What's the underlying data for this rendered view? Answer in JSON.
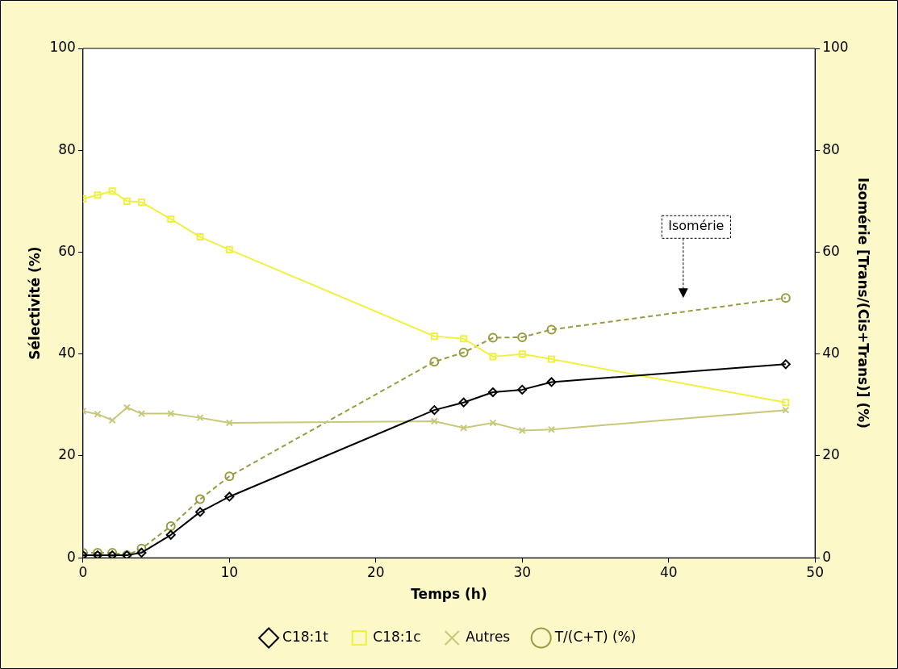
{
  "chart_data": {
    "type": "line",
    "xlabel": "Temps (h)",
    "ylabel": "Sélectivité (%)",
    "y2label": "Isomérie [Trans/(Cis+Trans)] (%)",
    "x": [
      0,
      1,
      2,
      3,
      4,
      6,
      8,
      10,
      24,
      26,
      28,
      30,
      32,
      48
    ],
    "xlim": [
      0,
      50
    ],
    "xticks": [
      0,
      10,
      20,
      30,
      40,
      50
    ],
    "ylim": [
      0,
      100
    ],
    "yticks": [
      0,
      20,
      40,
      60,
      80,
      100
    ],
    "y2lim": [
      0,
      100
    ],
    "y2ticks": [
      0,
      20,
      40,
      60,
      80,
      100
    ],
    "grid": false,
    "legend": "bottom",
    "annotations": [
      "Isomérie"
    ],
    "series": [
      {
        "name": "C18:1t",
        "color": "#000000",
        "marker": "diamond",
        "line_style": "solid",
        "values": [
          0.5,
          0.5,
          0.5,
          0.5,
          1,
          4.5,
          9,
          12,
          29,
          30.5,
          32.5,
          33,
          34.5,
          38
        ]
      },
      {
        "name": "C18:1c",
        "color": "#f0f040",
        "marker": "square",
        "line_style": "solid",
        "values": [
          70.5,
          71.2,
          72,
          70,
          69.8,
          66.5,
          63,
          60.5,
          43.5,
          43,
          39.5,
          40,
          39,
          30.5
        ]
      },
      {
        "name": "Autres",
        "color": "#c8c87a",
        "marker": "cross",
        "line_style": "solid",
        "values": [
          28.8,
          28.2,
          27,
          29.5,
          28.3,
          28.3,
          27.5,
          26.5,
          26.8,
          25.5,
          26.5,
          25,
          25.2,
          29
        ]
      },
      {
        "name": "T/(C+T) (%)",
        "color": "#9a9a40",
        "marker": "circle",
        "line_style": "dashed",
        "axis": "y2",
        "values": [
          1,
          1,
          1,
          0.5,
          1.8,
          6.2,
          11.5,
          16,
          38.5,
          40.3,
          43.2,
          43.3,
          44.8,
          51
        ]
      }
    ]
  }
}
